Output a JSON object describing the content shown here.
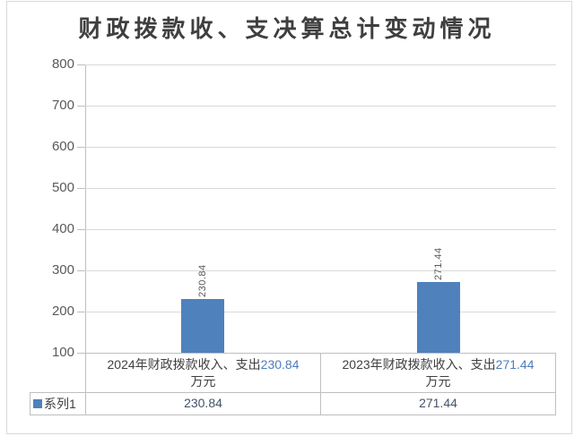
{
  "title": {
    "text": "财政拨款收、支决算总计变动情况"
  },
  "colors": {
    "bar": "#4f81bd",
    "gridline": "#d9d9d9",
    "axis": "#bfbfbf",
    "title_text": "#3f3f3f",
    "tick_text": "#595959",
    "category_text": "#3f3f3f",
    "category_number_text": "#4e7cbb",
    "table_value_text": "#44546a",
    "table_border": "#bfbfbf",
    "frame_border": "#d9d9d9"
  },
  "chart_data": {
    "type": "bar",
    "title": "财政拨款收、支决算总计变动情况",
    "categories": [
      "2024年财政拨款收入、支出230.84万元",
      "2023年财政拨款收入、支出271.44万元"
    ],
    "category_parts": [
      {
        "line1_prefix": "2024年财政拨款收入、支出",
        "line1_value": "230.84",
        "line2": "万元"
      },
      {
        "line1_prefix": "2023年财政拨款收入、支出",
        "line1_value": "271.44",
        "line2": "万元"
      }
    ],
    "series": [
      {
        "name": "系列1",
        "values": [
          230.84,
          271.44
        ]
      }
    ],
    "data_labels": [
      "230.84",
      "271.44"
    ],
    "ylim": [
      100,
      800
    ],
    "yticks": [
      800,
      700,
      600,
      500,
      400,
      300,
      200,
      100
    ],
    "grid": true,
    "legend_position": "data-table-left",
    "xlabel": "",
    "ylabel": ""
  },
  "data_table": {
    "series_rows": [
      {
        "legend": "系列1",
        "values": [
          "230.84",
          "271.44"
        ]
      }
    ]
  }
}
